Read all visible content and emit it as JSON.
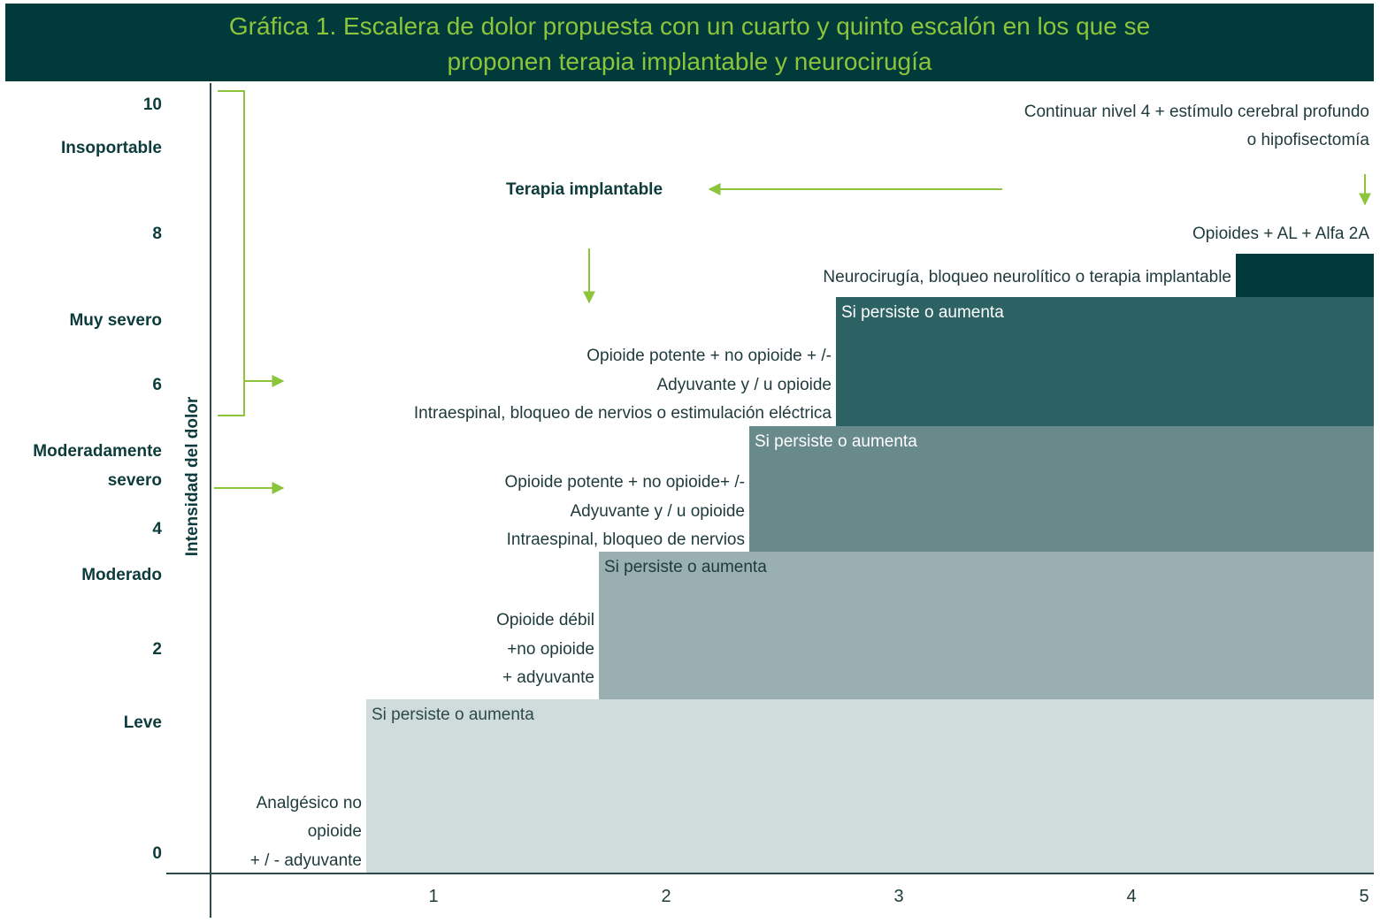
{
  "title": {
    "line1": "Gráfica 1. Escalera de dolor propuesta con un cuarto y quinto escalón en los que se",
    "line2": "proponen terapia implantable y neurocirugía"
  },
  "colors": {
    "header_bg": "#003a3a",
    "title_text": "#8cc43c",
    "arrow": "#8cc43c",
    "step1": "#cfdcdb",
    "step2": "#9aafb0",
    "step3": "#688a8b",
    "step4": "#2c6264",
    "step5": "#003a3a"
  },
  "y_axis": {
    "title": "Intensidad del dolor",
    "labels": [
      "10",
      "Insoportable",
      "8",
      "Muy severo",
      "6",
      "Moderadamente",
      "severo",
      "4",
      "Moderado",
      "2",
      "Leve",
      "0"
    ]
  },
  "x_axis": {
    "labels": [
      "1",
      "2",
      "3",
      "4",
      "5"
    ]
  },
  "steps": [
    {
      "level": 1,
      "note": "Si persiste o aumenta",
      "text": [
        "Analgésico no",
        "opioide",
        "+ / - adyuvante"
      ]
    },
    {
      "level": 2,
      "note": "Si persiste o aumenta",
      "text": [
        "Opioide débil",
        "+no opioide",
        "+ adyuvante"
      ]
    },
    {
      "level": 3,
      "note": "Si persiste o aumenta",
      "text": [
        "Opioide potente + no opioide+ /-",
        "Adyuvante y / u opioide",
        "Intraespinal, bloqueo de nervios"
      ]
    },
    {
      "level": 4,
      "note": "Si persiste o aumenta",
      "text": [
        "Opioide potente + no opioide + /-",
        "Adyuvante y / u opioide",
        "Intraespinal, bloqueo de nervios o estimulación eléctrica"
      ]
    },
    {
      "level": 5,
      "text": [
        "Neurocirugía, bloqueo neurolítico o terapia implantable"
      ]
    }
  ],
  "top_right": {
    "line1": "Continuar nivel 4 + estímulo cerebral profundo",
    "line2": "o hipofisectomía",
    "opioides": "Opioides + AL + Alfa 2A"
  },
  "implant_label": "Terapia implantable"
}
